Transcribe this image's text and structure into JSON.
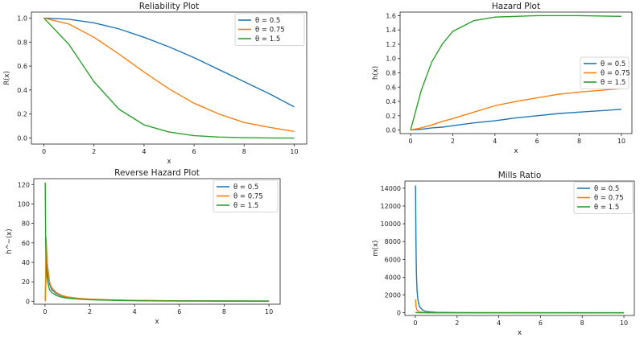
{
  "colors": {
    "theta_0_5": "#1f77b4",
    "theta_0_75": "#ff7f0e",
    "theta_1_5": "#2ca02c"
  },
  "chart_data": [
    {
      "type": "line",
      "title": "Reliability Plot",
      "xlabel": "x",
      "ylabel": "R(x)",
      "xlim": [
        -0.5,
        10.5
      ],
      "ylim": [
        -0.05,
        1.05
      ],
      "xticks": [
        "0",
        "2",
        "4",
        "6",
        "8",
        "10"
      ],
      "yticks": [
        "0.0",
        "0.2",
        "0.4",
        "0.6",
        "0.8",
        "1.0"
      ],
      "legend_position": "top-right",
      "grid": false,
      "x": [
        0,
        1,
        2,
        3,
        4,
        5,
        6,
        7,
        8,
        9,
        10
      ],
      "series": [
        {
          "name": "θ = 0.5",
          "color": "#1f77b4",
          "values": [
            1.0,
            0.99,
            0.96,
            0.91,
            0.84,
            0.76,
            0.67,
            0.57,
            0.47,
            0.37,
            0.26
          ]
        },
        {
          "name": "θ = 0.75",
          "color": "#ff7f0e",
          "values": [
            1.0,
            0.95,
            0.84,
            0.7,
            0.55,
            0.41,
            0.29,
            0.2,
            0.13,
            0.09,
            0.055
          ]
        },
        {
          "name": "θ = 1.5",
          "color": "#2ca02c",
          "values": [
            1.0,
            0.78,
            0.47,
            0.24,
            0.11,
            0.05,
            0.02,
            0.008,
            0.003,
            0.001,
            0.0
          ]
        }
      ]
    },
    {
      "type": "line",
      "title": "Hazard Plot",
      "xlabel": "x",
      "ylabel": "h(x)",
      "xlim": [
        -0.5,
        10.5
      ],
      "ylim": [
        -0.05,
        1.65
      ],
      "xticks": [
        "0",
        "2",
        "4",
        "6",
        "8",
        "10"
      ],
      "yticks": [
        "0.0",
        "0.2",
        "0.4",
        "0.6",
        "0.8",
        "1.0",
        "1.2",
        "1.4",
        "1.6"
      ],
      "legend_position": "center-right",
      "grid": false,
      "x": [
        0,
        0.5,
        1,
        1.5,
        2,
        3,
        4,
        5,
        6,
        7,
        8,
        10
      ],
      "series": [
        {
          "name": "θ = 0.5",
          "color": "#1f77b4",
          "values": [
            0.0,
            0.01,
            0.03,
            0.04,
            0.06,
            0.1,
            0.13,
            0.17,
            0.2,
            0.23,
            0.25,
            0.29
          ]
        },
        {
          "name": "θ = 0.75",
          "color": "#ff7f0e",
          "values": [
            0.0,
            0.03,
            0.07,
            0.12,
            0.16,
            0.25,
            0.34,
            0.4,
            0.45,
            0.5,
            0.53,
            0.58
          ]
        },
        {
          "name": "θ = 1.5",
          "color": "#2ca02c",
          "values": [
            0.0,
            0.55,
            0.95,
            1.2,
            1.38,
            1.53,
            1.58,
            1.59,
            1.6,
            1.6,
            1.6,
            1.59
          ]
        }
      ]
    },
    {
      "type": "line",
      "title": "Reverse Hazard Plot",
      "xlabel": "x",
      "ylabel": "h^~(x)",
      "xlim": [
        -0.5,
        10.5
      ],
      "ylim": [
        -3,
        126
      ],
      "xticks": [
        "0",
        "2",
        "4",
        "6",
        "8",
        "10"
      ],
      "yticks": [
        "0",
        "20",
        "40",
        "60",
        "80",
        "100",
        "120"
      ],
      "legend_position": "top-right",
      "grid": false,
      "series": [
        {
          "name": "θ = 0.5",
          "color": "#1f77b4",
          "x": [
            0.01,
            0.05,
            0.1,
            0.2,
            0.3,
            0.5,
            0.75,
            1,
            1.5,
            2,
            3,
            4,
            5,
            6,
            8,
            10
          ],
          "values": [
            0,
            40,
            30,
            18,
            12,
            8,
            5.5,
            4,
            2.8,
            2,
            1.3,
            0.9,
            0.7,
            0.5,
            0.3,
            0.2
          ]
        },
        {
          "name": "θ = 0.75",
          "color": "#ff7f0e",
          "x": [
            0.01,
            0.05,
            0.1,
            0.2,
            0.3,
            0.5,
            0.75,
            1,
            1.5,
            2,
            3,
            4,
            5,
            6,
            8,
            10
          ],
          "values": [
            0,
            65,
            40,
            20,
            14,
            9,
            6,
            4.5,
            3,
            2.2,
            1.4,
            1,
            0.7,
            0.5,
            0.3,
            0.2
          ]
        },
        {
          "name": "θ = 1.5",
          "color": "#2ca02c",
          "x": [
            0.01,
            0.03,
            0.05,
            0.1,
            0.2,
            0.3,
            0.5,
            0.75,
            1,
            1.5,
            2,
            3,
            4,
            5,
            6,
            8,
            10
          ],
          "values": [
            122,
            60,
            40,
            22,
            12,
            9,
            6,
            4.2,
            3.2,
            2.2,
            1.6,
            1,
            0.6,
            0.4,
            0.3,
            0.2,
            0.1
          ]
        }
      ]
    },
    {
      "type": "line",
      "title": "Mills Ratio",
      "xlabel": "x",
      "ylabel": "m(x)",
      "xlim": [
        -0.5,
        10.5
      ],
      "ylim": [
        -300,
        14800
      ],
      "xticks": [
        "0",
        "2",
        "4",
        "6",
        "8",
        "10"
      ],
      "yticks": [
        "0",
        "2000",
        "4000",
        "6000",
        "8000",
        "10000",
        "12000",
        "14000"
      ],
      "legend_position": "top-right",
      "grid": false,
      "series": [
        {
          "name": "θ = 0.5",
          "color": "#1f77b4",
          "x": [
            0.01,
            0.03,
            0.05,
            0.08,
            0.12,
            0.2,
            0.35,
            0.5,
            1,
            2,
            4,
            10
          ],
          "values": [
            14300,
            8000,
            4500,
            2600,
            1500,
            700,
            300,
            150,
            50,
            20,
            10,
            5
          ]
        },
        {
          "name": "θ = 0.75",
          "color": "#ff7f0e",
          "x": [
            0.01,
            0.03,
            0.06,
            0.1,
            0.2,
            0.35,
            0.5,
            1,
            2,
            4,
            10
          ],
          "values": [
            1500,
            800,
            400,
            200,
            100,
            50,
            30,
            15,
            8,
            5,
            3
          ]
        },
        {
          "name": "θ = 1.5",
          "color": "#2ca02c",
          "x": [
            0.01,
            0.05,
            0.1,
            0.5,
            1,
            2,
            5,
            10
          ],
          "values": [
            60,
            20,
            10,
            3,
            2,
            1,
            0.5,
            0.3
          ]
        }
      ]
    }
  ]
}
